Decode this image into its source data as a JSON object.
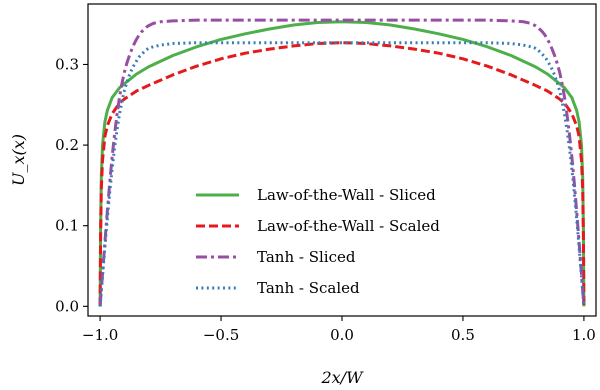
{
  "chart_data": {
    "type": "line",
    "xlabel": "2x/W",
    "ylabel": "U_x(x)",
    "xlim": [
      -1.05,
      1.05
    ],
    "ylim": [
      -0.012,
      0.375
    ],
    "x_ticks": [
      -1.0,
      -0.5,
      0.0,
      0.5,
      1.0
    ],
    "x_tick_labels": [
      "−1.0",
      "−0.5",
      "0.0",
      "0.5",
      "1.0"
    ],
    "y_ticks": [
      0.0,
      0.1,
      0.2,
      0.3
    ],
    "y_tick_labels": [
      "0.0",
      "0.1",
      "0.2",
      "0.3"
    ],
    "grid": false,
    "legend_position": "lower-center",
    "series": [
      {
        "name": "Law-of-the-Wall - Sliced",
        "color": "#4daf4a",
        "style": "solid",
        "x": [
          -1.0,
          -0.998,
          -0.995,
          -0.99,
          -0.98,
          -0.97,
          -0.95,
          -0.92,
          -0.9,
          -0.85,
          -0.8,
          -0.7,
          -0.6,
          -0.5,
          -0.4,
          -0.3,
          -0.2,
          -0.1,
          0.0,
          0.1,
          0.2,
          0.3,
          0.4,
          0.5,
          0.6,
          0.7,
          0.8,
          0.85,
          0.9,
          0.92,
          0.95,
          0.97,
          0.98,
          0.99,
          0.995,
          0.998,
          1.0
        ],
        "y": [
          0.0,
          0.095,
          0.16,
          0.2,
          0.229,
          0.243,
          0.259,
          0.271,
          0.276,
          0.288,
          0.297,
          0.311,
          0.322,
          0.331,
          0.338,
          0.344,
          0.349,
          0.352,
          0.353,
          0.352,
          0.349,
          0.344,
          0.338,
          0.331,
          0.322,
          0.311,
          0.297,
          0.288,
          0.276,
          0.271,
          0.259,
          0.243,
          0.229,
          0.2,
          0.16,
          0.095,
          0.0
        ]
      },
      {
        "name": "Law-of-the-Wall - Scaled",
        "color": "#e41a1c",
        "style": "dashed",
        "x": [
          -1.0,
          -0.998,
          -0.995,
          -0.99,
          -0.98,
          -0.97,
          -0.95,
          -0.92,
          -0.9,
          -0.85,
          -0.8,
          -0.7,
          -0.6,
          -0.5,
          -0.4,
          -0.3,
          -0.2,
          -0.1,
          0.0,
          0.1,
          0.2,
          0.3,
          0.4,
          0.5,
          0.6,
          0.7,
          0.8,
          0.85,
          0.9,
          0.92,
          0.95,
          0.97,
          0.98,
          0.99,
          0.995,
          0.998,
          1.0
        ],
        "y": [
          0.0,
          0.085,
          0.145,
          0.181,
          0.211,
          0.224,
          0.239,
          0.252,
          0.257,
          0.267,
          0.274,
          0.287,
          0.298,
          0.307,
          0.314,
          0.319,
          0.323,
          0.326,
          0.327,
          0.326,
          0.323,
          0.319,
          0.314,
          0.307,
          0.298,
          0.287,
          0.274,
          0.267,
          0.257,
          0.252,
          0.239,
          0.224,
          0.211,
          0.181,
          0.145,
          0.085,
          0.0
        ]
      },
      {
        "name": "Tanh - Sliced",
        "color": "#984ea3",
        "style": "dashdot",
        "x": [
          -1.0,
          -0.99,
          -0.98,
          -0.97,
          -0.96,
          -0.95,
          -0.94,
          -0.93,
          -0.92,
          -0.91,
          -0.9,
          -0.89,
          -0.88,
          -0.87,
          -0.86,
          -0.85,
          -0.84,
          -0.83,
          -0.82,
          -0.81,
          -0.8,
          -0.78,
          -0.75,
          -0.7,
          -0.6,
          -0.5,
          -0.25,
          0.0,
          0.25,
          0.5,
          0.6,
          0.7,
          0.75,
          0.78,
          0.8,
          0.81,
          0.82,
          0.83,
          0.84,
          0.85,
          0.86,
          0.87,
          0.88,
          0.89,
          0.9,
          0.91,
          0.92,
          0.93,
          0.94,
          0.95,
          0.96,
          0.97,
          0.98,
          0.99,
          1.0
        ],
        "y": [
          0.0,
          0.04,
          0.08,
          0.118,
          0.154,
          0.186,
          0.214,
          0.238,
          0.259,
          0.276,
          0.29,
          0.301,
          0.31,
          0.318,
          0.325,
          0.331,
          0.336,
          0.34,
          0.343,
          0.346,
          0.348,
          0.351,
          0.353,
          0.354,
          0.355,
          0.355,
          0.355,
          0.355,
          0.355,
          0.355,
          0.355,
          0.354,
          0.353,
          0.351,
          0.348,
          0.346,
          0.343,
          0.34,
          0.336,
          0.331,
          0.325,
          0.318,
          0.31,
          0.301,
          0.29,
          0.276,
          0.259,
          0.238,
          0.214,
          0.186,
          0.154,
          0.118,
          0.08,
          0.04,
          0.0
        ]
      },
      {
        "name": "Tanh - Scaled",
        "color": "#377eb8",
        "style": "dotted",
        "x": [
          -1.0,
          -0.99,
          -0.98,
          -0.97,
          -0.96,
          -0.95,
          -0.94,
          -0.93,
          -0.92,
          -0.91,
          -0.9,
          -0.89,
          -0.88,
          -0.87,
          -0.86,
          -0.85,
          -0.84,
          -0.83,
          -0.82,
          -0.81,
          -0.8,
          -0.78,
          -0.75,
          -0.7,
          -0.6,
          -0.5,
          -0.25,
          0.0,
          0.25,
          0.5,
          0.6,
          0.7,
          0.75,
          0.78,
          0.8,
          0.81,
          0.82,
          0.83,
          0.84,
          0.85,
          0.86,
          0.87,
          0.88,
          0.89,
          0.9,
          0.91,
          0.92,
          0.93,
          0.94,
          0.95,
          0.96,
          0.97,
          0.98,
          0.99,
          1.0
        ],
        "y": [
          0.0,
          0.037,
          0.074,
          0.109,
          0.142,
          0.171,
          0.197,
          0.219,
          0.238,
          0.254,
          0.267,
          0.277,
          0.286,
          0.293,
          0.299,
          0.304,
          0.309,
          0.312,
          0.315,
          0.318,
          0.32,
          0.322,
          0.324,
          0.326,
          0.327,
          0.327,
          0.327,
          0.327,
          0.327,
          0.327,
          0.327,
          0.326,
          0.324,
          0.322,
          0.32,
          0.318,
          0.315,
          0.312,
          0.309,
          0.304,
          0.299,
          0.293,
          0.286,
          0.277,
          0.267,
          0.254,
          0.238,
          0.219,
          0.197,
          0.171,
          0.142,
          0.109,
          0.074,
          0.037,
          0.0
        ]
      }
    ]
  }
}
